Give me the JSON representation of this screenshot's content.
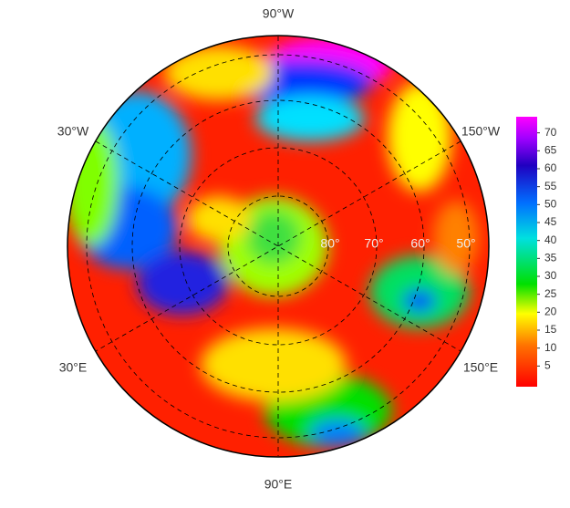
{
  "map": {
    "longitude_labels": {
      "top": "90°W",
      "top_right": "150°W",
      "bottom_right": "150°E",
      "bottom": "90°E",
      "bottom_left": "30°E",
      "top_left": "30°W"
    },
    "latitude_labels": [
      "80°",
      "70°",
      "60°",
      "50°"
    ],
    "colorbar": {
      "lim": [
        0,
        75
      ],
      "ticks": [
        5,
        10,
        15,
        20,
        25,
        30,
        35,
        40,
        45,
        50,
        55,
        60,
        65,
        70
      ]
    }
  }
}
